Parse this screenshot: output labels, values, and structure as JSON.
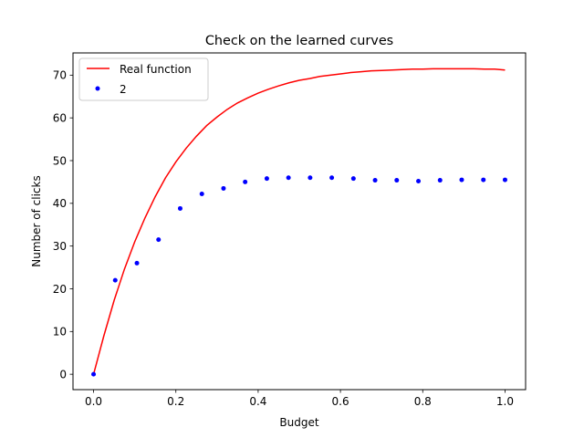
{
  "chart_data": {
    "type": "line",
    "title": "Check on the learned curves",
    "xlabel": "Budget",
    "ylabel": "Number of clicks",
    "xlim": [
      -0.05,
      1.05
    ],
    "ylim": [
      -3.6,
      75.2
    ],
    "xticks": [
      0.0,
      0.2,
      0.4,
      0.6,
      0.8,
      1.0
    ],
    "xtick_labels": [
      "0.0",
      "0.2",
      "0.4",
      "0.6",
      "0.8",
      "1.0"
    ],
    "yticks": [
      0,
      10,
      20,
      30,
      40,
      50,
      60,
      70
    ],
    "ytick_labels": [
      "0",
      "10",
      "20",
      "30",
      "40",
      "50",
      "60",
      "70"
    ],
    "grid": false,
    "legend_position": "top-left",
    "series": [
      {
        "name": "Real function",
        "kind": "line",
        "color": "#ff0000",
        "x": [
          0.0,
          0.025,
          0.05,
          0.075,
          0.1,
          0.125,
          0.15,
          0.175,
          0.2,
          0.225,
          0.25,
          0.275,
          0.3,
          0.325,
          0.35,
          0.375,
          0.4,
          0.425,
          0.45,
          0.475,
          0.5,
          0.525,
          0.55,
          0.575,
          0.6,
          0.625,
          0.65,
          0.675,
          0.7,
          0.725,
          0.75,
          0.775,
          0.8,
          0.825,
          0.85,
          0.875,
          0.9,
          0.925,
          0.95,
          0.975,
          1.0
        ],
        "y": [
          0.0,
          9.0,
          17.3,
          24.6,
          31.0,
          36.6,
          41.6,
          46.0,
          49.7,
          52.9,
          55.7,
          58.2,
          60.2,
          62.0,
          63.5,
          64.7,
          65.8,
          66.7,
          67.5,
          68.2,
          68.8,
          69.2,
          69.7,
          70.0,
          70.3,
          70.6,
          70.8,
          71.0,
          71.1,
          71.2,
          71.3,
          71.4,
          71.4,
          71.5,
          71.5,
          71.5,
          71.5,
          71.5,
          71.4,
          71.4,
          71.2
        ]
      },
      {
        "name": "2",
        "kind": "scatter",
        "color": "#0000ff",
        "x": [
          0.0,
          0.0526,
          0.1053,
          0.1579,
          0.2105,
          0.2632,
          0.3158,
          0.3684,
          0.4211,
          0.4737,
          0.5263,
          0.5789,
          0.6316,
          0.6842,
          0.7368,
          0.7895,
          0.8421,
          0.8947,
          0.9474,
          1.0
        ],
        "y": [
          0.0,
          22.0,
          26.0,
          31.5,
          38.8,
          42.2,
          43.5,
          45.0,
          45.8,
          46.0,
          46.0,
          46.0,
          45.8,
          45.4,
          45.4,
          45.2,
          45.4,
          45.5,
          45.5,
          45.5
        ]
      }
    ]
  }
}
